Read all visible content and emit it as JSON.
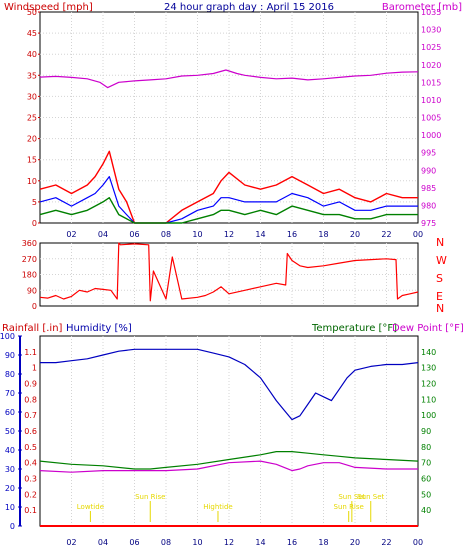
{
  "title": "24 hour graph day : April 15 2016",
  "colors": {
    "red": "#ff0000",
    "blue": "#0000ff",
    "darkblue": "#0000c0",
    "magenta": "#cc00cc",
    "green": "#008000",
    "yellow": "#e6d800",
    "grid": "#d4d4d4",
    "axis_red": "#cc0000"
  },
  "panels": {
    "wind": {
      "left_label": "Windspeed [mph]",
      "right_label": "Barometer [mb]"
    },
    "direction": {
      "compass": [
        "N",
        "W",
        "S",
        "E",
        "N"
      ]
    },
    "bottom": {
      "rainfall_label": "Rainfall [.in]",
      "humidity_label": "Humidity [%]",
      "temperature_label": "Temperature [°F]",
      "dewpoint_label": "Dew Point [°F]",
      "events": [
        {
          "label": "Lowtide",
          "hour": 3.2
        },
        {
          "label": "Sun Rise",
          "hour": 7.0
        },
        {
          "label": "Hightide",
          "hour": 11.3
        },
        {
          "label": "Sun Set",
          "hour": 19.8
        },
        {
          "label": "Sun Rise",
          "hour": 19.6
        },
        {
          "label": "Sun Set",
          "hour": 21.0
        }
      ]
    }
  },
  "chart_data": [
    {
      "type": "line",
      "name": "wind-and-barometer",
      "x_ticks": [
        "02",
        "04",
        "06",
        "08",
        "10",
        "12",
        "14",
        "16",
        "18",
        "20",
        "22",
        "00"
      ],
      "y_left_ticks": [
        0,
        5,
        10,
        15,
        20,
        25,
        30,
        35,
        40,
        45,
        50
      ],
      "ylim_left": [
        0,
        50
      ],
      "y_right_ticks": [
        975,
        980,
        985,
        990,
        995,
        1000,
        1005,
        1010,
        1015,
        1020,
        1025,
        1030,
        1035
      ],
      "ylim_right": [
        975,
        1035
      ],
      "series": [
        {
          "name": "Barometer",
          "axis": "right",
          "x": [
            0,
            1,
            2,
            3,
            3.8,
            4.3,
            5,
            6,
            7,
            8,
            9,
            10,
            11,
            11.8,
            12.5,
            13,
            14,
            15,
            16,
            17,
            18,
            19,
            20,
            21,
            22,
            23,
            24
          ],
          "y": [
            1016.5,
            1016.7,
            1016.4,
            1016,
            1015,
            1013.5,
            1015,
            1015.4,
            1015.7,
            1016,
            1016.8,
            1017,
            1017.5,
            1018.5,
            1017.5,
            1017,
            1016.4,
            1016,
            1016.2,
            1015.7,
            1016,
            1016.4,
            1016.8,
            1017,
            1017.6,
            1017.9,
            1018
          ]
        },
        {
          "name": "Wind Gust",
          "axis": "left",
          "x": [
            0,
            1,
            2,
            3,
            3.5,
            4,
            4.4,
            5,
            5.5,
            6,
            7,
            8,
            9,
            10,
            11,
            11.5,
            12,
            13,
            14,
            15,
            16,
            17,
            18,
            19,
            20,
            21,
            22,
            23,
            24
          ],
          "y": [
            8,
            9,
            7,
            9,
            11,
            14,
            17,
            8,
            5,
            0,
            0,
            0,
            3,
            5,
            7,
            10,
            12,
            9,
            8,
            9,
            11,
            9,
            7,
            8,
            6,
            5,
            7,
            6,
            6
          ]
        },
        {
          "name": "Wind Average",
          "axis": "left",
          "x": [
            0,
            1,
            2,
            3,
            3.5,
            4,
            4.4,
            5,
            5.5,
            6,
            7,
            8,
            9,
            10,
            11,
            11.5,
            12,
            13,
            14,
            15,
            16,
            17,
            18,
            19,
            20,
            21,
            22,
            23,
            24
          ],
          "y": [
            5,
            6,
            4,
            6,
            7,
            9,
            11,
            4,
            2,
            0,
            0,
            0,
            1,
            3,
            4,
            6,
            6,
            5,
            5,
            5,
            7,
            6,
            4,
            5,
            3,
            3,
            4,
            4,
            4
          ]
        },
        {
          "name": "Wind Speed",
          "axis": "left",
          "x": [
            0,
            1,
            2,
            3,
            3.5,
            4,
            4.4,
            5,
            5.5,
            6,
            7,
            8,
            9,
            10,
            11,
            11.5,
            12,
            13,
            14,
            15,
            16,
            17,
            18,
            19,
            20,
            21,
            22,
            23,
            24
          ],
          "y": [
            2,
            3,
            2,
            3,
            4,
            5,
            6,
            2,
            1,
            0,
            0,
            0,
            0,
            1,
            2,
            3,
            3,
            2,
            3,
            2,
            4,
            3,
            2,
            2,
            1,
            1,
            2,
            2,
            2
          ]
        }
      ]
    },
    {
      "type": "line",
      "name": "wind-direction",
      "y_ticks": [
        0,
        90,
        180,
        270,
        360
      ],
      "ylim": [
        0,
        360
      ],
      "series": [
        {
          "name": "Wind Direction",
          "x": [
            0,
            0.5,
            1,
            1.5,
            2,
            2.5,
            3,
            3.5,
            4,
            4.5,
            4.9,
            5.0,
            5.1,
            6,
            6.9,
            7.0,
            7.2,
            8,
            8.4,
            9,
            10,
            10.5,
            11,
            11.5,
            12,
            13,
            14,
            15,
            15.6,
            15.7,
            16,
            16.5,
            17,
            18,
            19,
            20,
            21,
            22,
            22.6,
            22.7,
            23,
            23.5,
            24
          ],
          "y": [
            50,
            45,
            60,
            40,
            55,
            90,
            80,
            100,
            95,
            90,
            40,
            360,
            350,
            355,
            350,
            30,
            200,
            40,
            280,
            40,
            50,
            60,
            80,
            110,
            70,
            90,
            110,
            130,
            120,
            300,
            260,
            230,
            220,
            230,
            245,
            260,
            265,
            270,
            265,
            40,
            60,
            70,
            80
          ]
        }
      ]
    },
    {
      "type": "line",
      "name": "humidity-temperature-dewpoint",
      "y_left_ticks": [
        0,
        10,
        20,
        30,
        40,
        50,
        60,
        70,
        80,
        90,
        100
      ],
      "ylim_left": [
        0,
        100
      ],
      "rain_ticks": [
        0.1,
        0.2,
        0.3,
        0.4,
        0.5,
        0.6,
        0.7,
        0.8,
        0.9,
        1,
        1.1
      ],
      "rain_lim": [
        0,
        1.2
      ],
      "y_right_ticks": [
        40,
        50,
        60,
        70,
        80,
        90,
        100,
        110,
        120,
        130,
        140
      ],
      "ylim_right": [
        30,
        150
      ],
      "series": [
        {
          "name": "Humidity",
          "axis": "left",
          "x": [
            0,
            1,
            2,
            3,
            4,
            5,
            6,
            7,
            8,
            9,
            10,
            11,
            12,
            13,
            14,
            14.5,
            15,
            15.5,
            16,
            16.5,
            17,
            17.5,
            18,
            18.5,
            19,
            19.5,
            20,
            21,
            22,
            23,
            24
          ],
          "y": [
            86,
            86,
            87,
            88,
            90,
            92,
            93,
            93,
            93,
            93,
            93,
            91,
            89,
            85,
            78,
            72,
            66,
            61,
            56,
            58,
            64,
            70,
            68,
            66,
            72,
            78,
            82,
            84,
            85,
            85,
            86
          ]
        },
        {
          "name": "Temperature",
          "axis": "right",
          "x": [
            0,
            2,
            4,
            6,
            7,
            8,
            10,
            12,
            14,
            15,
            16,
            17,
            18,
            19,
            20,
            22,
            24
          ],
          "y": [
            71,
            69,
            68,
            66,
            66,
            67,
            69,
            72,
            75,
            77,
            77,
            76,
            75,
            74,
            73,
            72,
            71
          ]
        },
        {
          "name": "Dew Point",
          "axis": "right",
          "x": [
            0,
            2,
            4,
            6,
            7,
            8,
            10,
            12,
            14,
            15,
            16,
            16.5,
            17,
            18,
            19,
            20,
            22,
            24
          ],
          "y": [
            65,
            64,
            65,
            65,
            65,
            65,
            66,
            70,
            71,
            69,
            65,
            66,
            68,
            70,
            70,
            67,
            66,
            66
          ]
        },
        {
          "name": "Rainfall",
          "axis": "rain",
          "x": [
            0,
            24
          ],
          "y": [
            0,
            0
          ]
        }
      ]
    }
  ]
}
